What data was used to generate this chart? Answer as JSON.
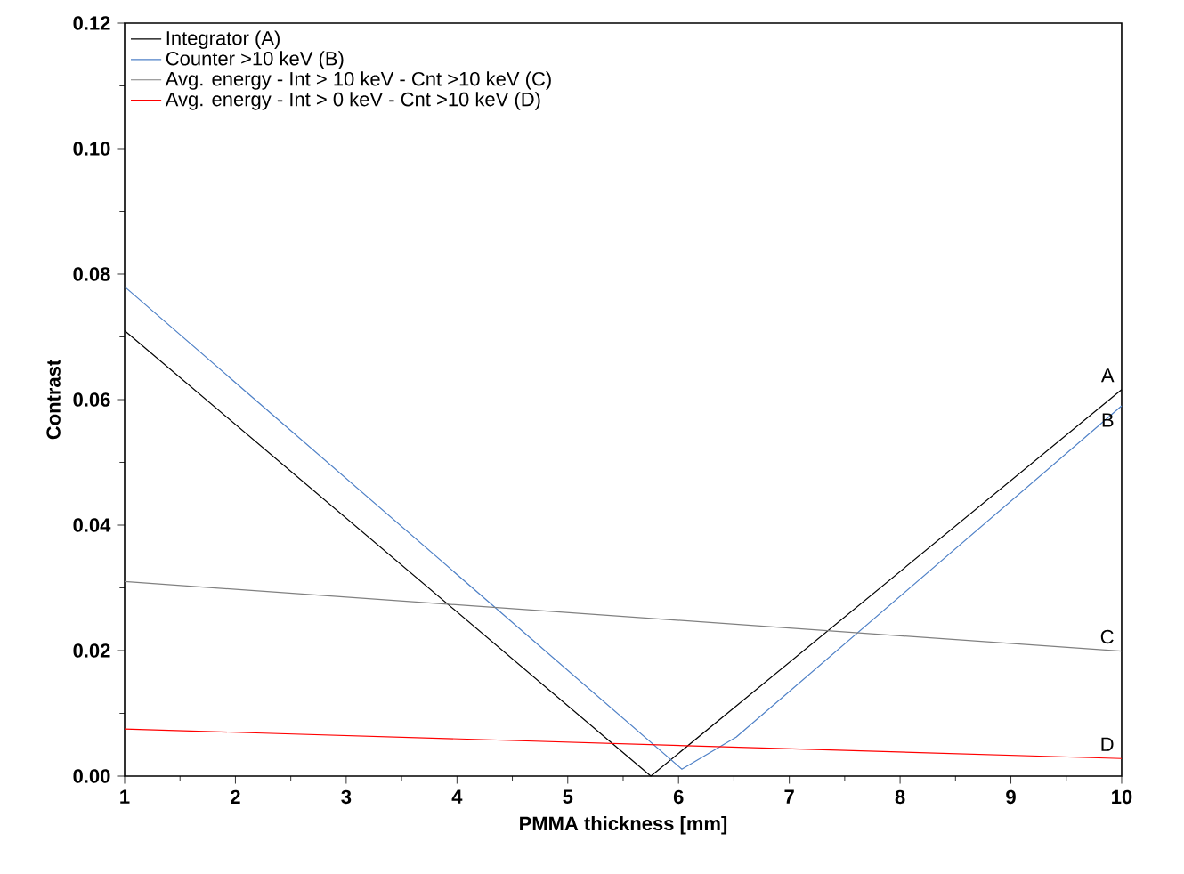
{
  "chart_data": {
    "type": "line",
    "xlabel": "PMMA thickness [mm]",
    "ylabel": "Contrast",
    "xlim": [
      1,
      10
    ],
    "ylim": [
      0,
      0.12
    ],
    "xticks": [
      1,
      2,
      3,
      4,
      5,
      6,
      7,
      8,
      9,
      10
    ],
    "yticks": [
      {
        "value": 0,
        "label": "0.00"
      },
      {
        "value": 0.02,
        "label": "0.02"
      },
      {
        "value": 0.04,
        "label": "0.04"
      },
      {
        "value": 0.06,
        "label": "0.06"
      },
      {
        "value": 0.08,
        "label": "0.08"
      },
      {
        "value": 0.1,
        "label": "0.10"
      },
      {
        "value": 0.12,
        "label": "0.12"
      }
    ],
    "grid": false,
    "legend": "top left",
    "marker": "none",
    "line_style": "solid",
    "series": [
      {
        "name": "Integrator (A)",
        "color": "#000000",
        "x": [
          1,
          5.75,
          10
        ],
        "values": [
          0.071,
          0,
          0.0616
        ]
      },
      {
        "name": "Counter >10 keV (B)",
        "color": "#4f81c7",
        "x": [
          1,
          6.03,
          6.52,
          10
        ],
        "values": [
          0.078,
          0.0011,
          0.0062,
          0.059
        ]
      },
      {
        "name": "Avg. energy - Int > 10 keV - Cnt >10 keV (C)",
        "color": "#808080",
        "x": [
          1,
          10
        ],
        "values": [
          0.031,
          0.0199
        ]
      },
      {
        "name": "Avg. energy - Int >  0 keV - Cnt >10 keV (D)",
        "color": "#ff0000",
        "x": [
          1,
          10
        ],
        "values": [
          0.0075,
          0.0028
        ]
      }
    ],
    "annotations": [
      "A",
      "B",
      "C",
      "D"
    ]
  }
}
